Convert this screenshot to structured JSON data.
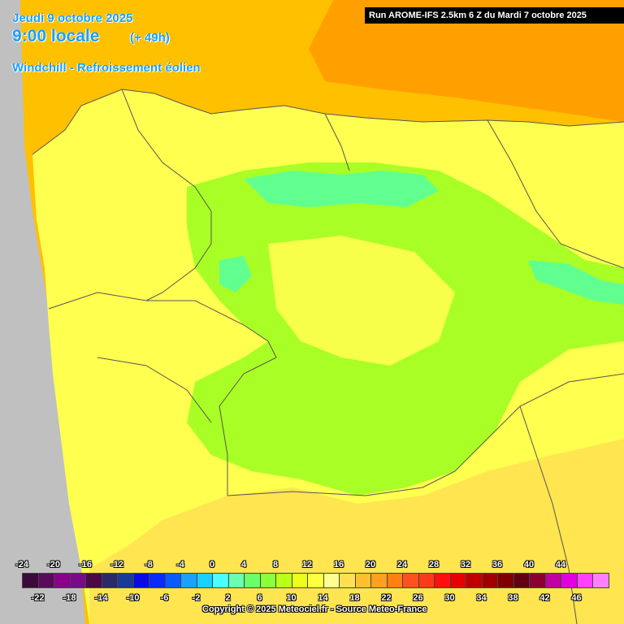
{
  "header": {
    "date": "Jeudi 9 octobre 2025",
    "hour": "9:00 locale",
    "lead": "(+ 49h)",
    "parameter": "Windchill - Refroissement éolien",
    "run": "Run AROME-IFS 2.5km 6 Z du Mardi 7 octobre 2025"
  },
  "legend": {
    "top_labels": [
      "-24",
      "-20",
      "-16",
      "-12",
      "-8",
      "-4",
      "0",
      "4",
      "8",
      "12",
      "16",
      "20",
      "24",
      "28",
      "32",
      "36",
      "40",
      "44"
    ],
    "bottom_labels": [
      "-22",
      "-18",
      "-14",
      "-10",
      "-6",
      "-2",
      "2",
      "6",
      "10",
      "14",
      "18",
      "22",
      "26",
      "30",
      "34",
      "38",
      "42",
      "46"
    ],
    "colors": [
      "#3b0a3b",
      "#5a0a5a",
      "#8a008a",
      "#7a0a8a",
      "#4a0a4a",
      "#2a2a6a",
      "#1a3a9a",
      "#0a0ae6",
      "#0a2aff",
      "#0a5aff",
      "#1aa0ff",
      "#1ad0ff",
      "#4affff",
      "#6affb0",
      "#6aff6a",
      "#8aff3a",
      "#baff1a",
      "#eaff1a",
      "#ffff40",
      "#ffff90",
      "#ffe050",
      "#ffc030",
      "#ffa020",
      "#ff8010",
      "#ff5020",
      "#ff3a1a",
      "#ff1010",
      "#e60000",
      "#c00000",
      "#a00000",
      "#800000",
      "#600010",
      "#8a0030",
      "#c000a0",
      "#e000e0",
      "#ff40ff",
      "#ff80ff"
    ]
  },
  "map": {
    "ocean_color": "#ffc000",
    "warm_ocean_color": "#ffa000",
    "land_color": "#ffff50",
    "green_color": "#a0ff20",
    "cyan_color": "#60ff90",
    "no_data_color": "#c0c0c0"
  },
  "copyright": "Copyright © 2025 Meteociel.fr - Source Meteo-France"
}
